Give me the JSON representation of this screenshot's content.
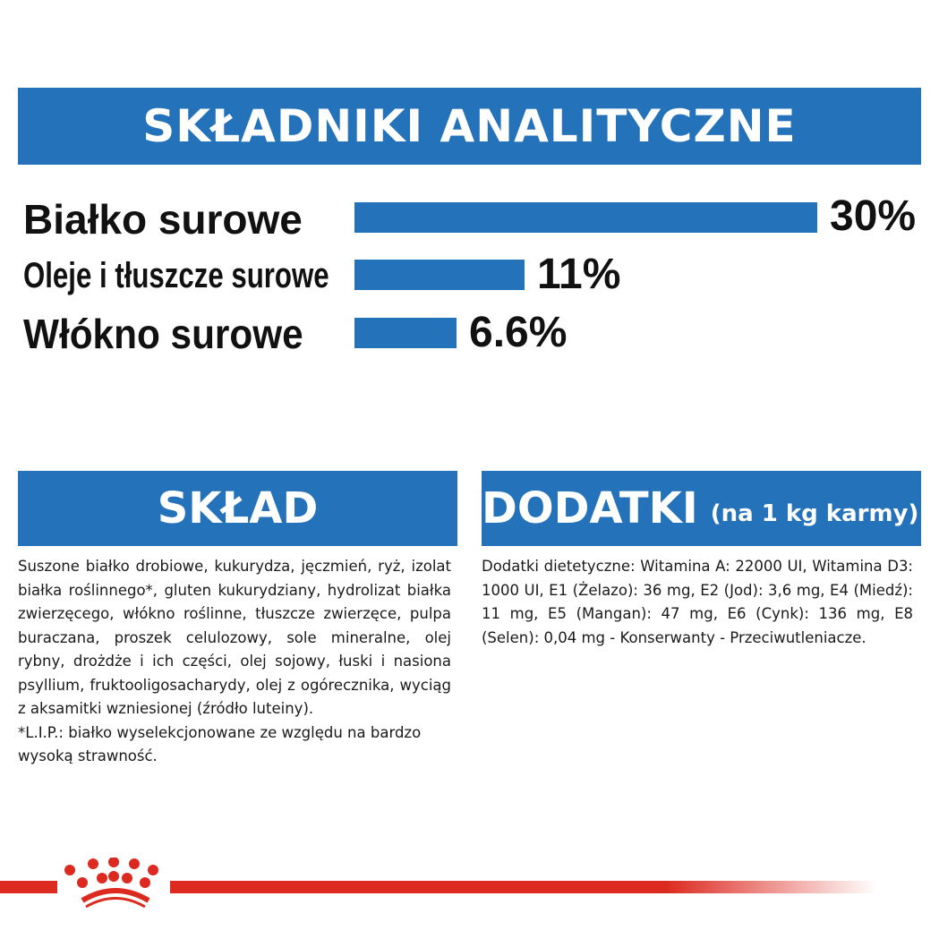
{
  "header": {
    "title": "SKŁADNIKI ANALITYCZNE"
  },
  "chart_data": {
    "type": "bar",
    "orientation": "horizontal",
    "categories": [
      "Białko surowe",
      "Oleje i tłuszcze surowe",
      "Włókno surowe"
    ],
    "values": [
      30,
      11,
      6.6
    ],
    "value_labels": [
      "30%",
      "11%",
      "6.6%"
    ],
    "color": "#2472b9"
  },
  "sklad": {
    "title": "SKŁAD",
    "text": "Suszone białko drobiowe, kukurydza, jęczmień, ryż, izolat białka roślinnego*, gluten kukurydziany, hydrolizat białka zwierzęcego, włókno roślinne, tłuszcze zwierzęce, pulpa buraczana, proszek celulozowy, sole mineralne, olej rybny, drożdże i ich części, olej sojowy, łuski i nasiona psyllium, fruktooligosacharydy, olej z ogórecznika, wyciąg z aksamitki wzniesionej (źródło luteiny).",
    "note": "*L.I.P.: białko wyselekcjonowane ze względu na bardzo wysoką strawność."
  },
  "dodatki": {
    "title": "DODATKI",
    "subtitle": "(na 1 kg karmy)",
    "text": "Dodatki dietetyczne: Witamina A: 22000 UI, Witamina D3: 1000 UI, E1 (Żelazo): 36 mg, E2 (Jod): 3,6 mg, E4 (Miedź): 11 mg, E5 (Mangan): 47 mg, E6 (Cynk): 136 mg, E8 (Selen): 0,04 mg - Konserwanty - Przeciwutleniacze."
  },
  "logo": {
    "icon": "royal-canin-crown-icon",
    "color": "#dc2a20"
  }
}
